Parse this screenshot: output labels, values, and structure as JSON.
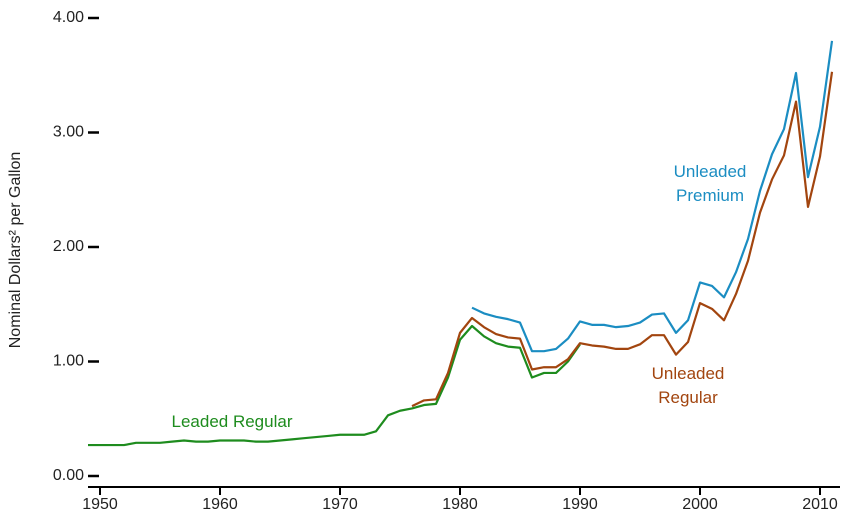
{
  "chart_data": {
    "type": "line",
    "y_label": "Nominal Dollars² per Gallon",
    "x": [
      1949,
      1950,
      1951,
      1952,
      1953,
      1954,
      1955,
      1956,
      1957,
      1958,
      1959,
      1960,
      1961,
      1962,
      1963,
      1964,
      1965,
      1966,
      1967,
      1968,
      1969,
      1970,
      1971,
      1972,
      1973,
      1974,
      1975,
      1976,
      1977,
      1978,
      1979,
      1980,
      1981,
      1982,
      1983,
      1984,
      1985,
      1986,
      1987,
      1988,
      1989,
      1990,
      1991,
      1992,
      1993,
      1994,
      1995,
      1996,
      1997,
      1998,
      1999,
      2000,
      2001,
      2002,
      2003,
      2004,
      2005,
      2006,
      2007,
      2008,
      2009,
      2010,
      2011
    ],
    "series": [
      {
        "name": "Leaded Regular",
        "color": "#1e8c1e",
        "values": [
          0.27,
          0.27,
          0.27,
          0.27,
          0.29,
          0.29,
          0.29,
          0.3,
          0.31,
          0.3,
          0.3,
          0.31,
          0.31,
          0.31,
          0.3,
          0.3,
          0.31,
          0.32,
          0.33,
          0.34,
          0.35,
          0.36,
          0.36,
          0.36,
          0.39,
          0.53,
          0.57,
          0.59,
          0.62,
          0.63,
          0.86,
          1.19,
          1.31,
          1.22,
          1.16,
          1.13,
          1.12,
          0.86,
          0.9,
          0.9,
          1.0,
          1.15,
          null,
          null,
          null,
          null,
          null,
          null,
          null,
          null,
          null,
          null,
          null,
          null,
          null,
          null,
          null,
          null,
          null,
          null,
          null,
          null,
          null
        ]
      },
      {
        "name": "Unleaded Regular",
        "color": "#a2450f",
        "values": [
          null,
          null,
          null,
          null,
          null,
          null,
          null,
          null,
          null,
          null,
          null,
          null,
          null,
          null,
          null,
          null,
          null,
          null,
          null,
          null,
          null,
          null,
          null,
          null,
          null,
          null,
          null,
          0.61,
          0.66,
          0.67,
          0.9,
          1.25,
          1.38,
          1.3,
          1.24,
          1.21,
          1.2,
          0.93,
          0.95,
          0.95,
          1.02,
          1.16,
          1.14,
          1.13,
          1.11,
          1.11,
          1.15,
          1.23,
          1.23,
          1.06,
          1.17,
          1.51,
          1.46,
          1.36,
          1.59,
          1.88,
          2.3,
          2.59,
          2.8,
          3.27,
          2.35,
          2.79,
          3.53
        ]
      },
      {
        "name": "Unleaded Premium",
        "color": "#1b8dc2",
        "values": [
          null,
          null,
          null,
          null,
          null,
          null,
          null,
          null,
          null,
          null,
          null,
          null,
          null,
          null,
          null,
          null,
          null,
          null,
          null,
          null,
          null,
          null,
          null,
          null,
          null,
          null,
          null,
          null,
          null,
          null,
          null,
          null,
          1.47,
          1.42,
          1.39,
          1.37,
          1.34,
          1.09,
          1.09,
          1.11,
          1.2,
          1.35,
          1.32,
          1.32,
          1.3,
          1.31,
          1.34,
          1.41,
          1.42,
          1.25,
          1.36,
          1.69,
          1.66,
          1.56,
          1.78,
          2.07,
          2.49,
          2.81,
          3.03,
          3.52,
          2.61,
          3.05,
          3.8
        ]
      }
    ],
    "xlim": [
      1949,
      2012
    ],
    "xticks": [
      1950,
      1960,
      1970,
      1980,
      1990,
      2000,
      2010
    ],
    "ylim": [
      0,
      4
    ],
    "yticks": [
      {
        "value": 0,
        "label": "0.00"
      },
      {
        "value": 1,
        "label": "1.00"
      },
      {
        "value": 2,
        "label": "2.00"
      },
      {
        "value": 3,
        "label": "3.00"
      },
      {
        "value": 4,
        "label": "4.00"
      }
    ]
  }
}
